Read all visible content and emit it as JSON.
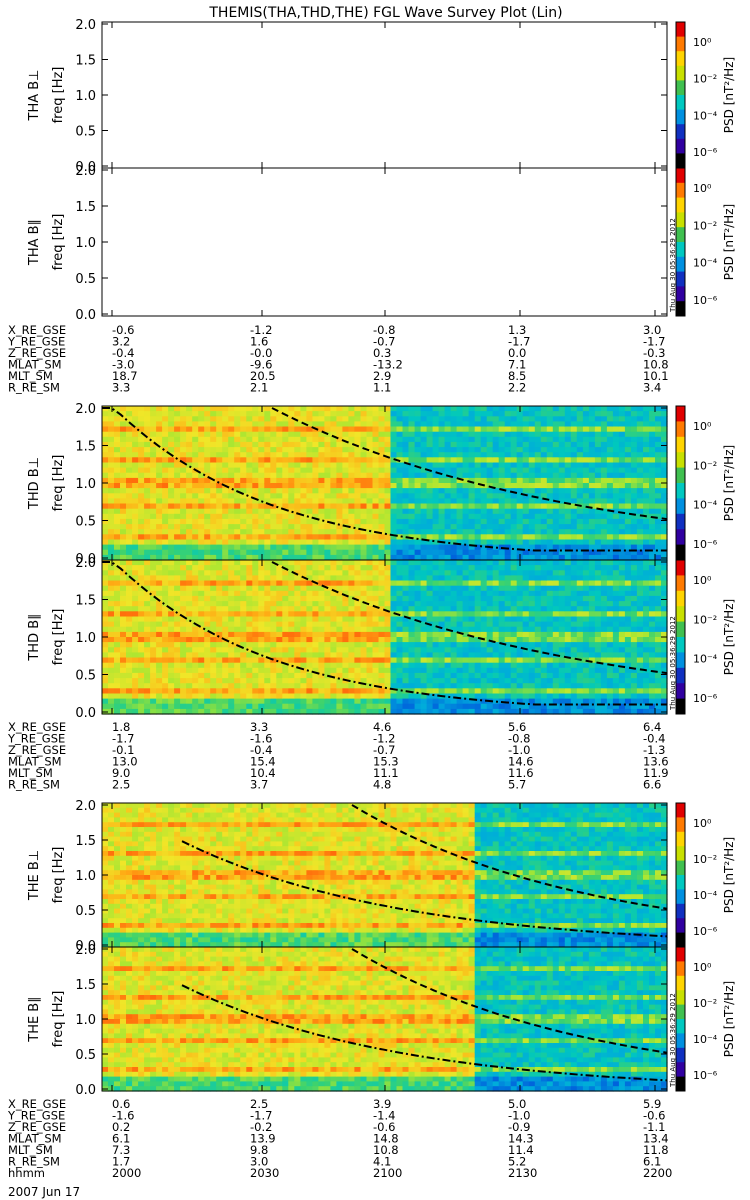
{
  "title": "THEMIS(THA,THD,THE) FGL Wave Survey Plot (Lin)",
  "stamp": "Thu Aug 30 05:36:29 2012",
  "colorbar": {
    "label": "PSD [nT²/Hz]",
    "ticks": [
      "10⁰",
      "10⁻²",
      "10⁻⁴",
      "10⁻⁶"
    ],
    "colors": [
      "#e00000",
      "#ff7a00",
      "#ffd400",
      "#c8e000",
      "#40c050",
      "#00c8c0",
      "#0090e0",
      "#1030c0",
      "#3000a0",
      "#000000"
    ]
  },
  "y_ticks": [
    "0.0",
    "0.5",
    "1.0",
    "1.5",
    "2.0"
  ],
  "x_ticks": [
    "2000",
    "2030",
    "2100",
    "2130",
    "2200"
  ],
  "date_label": "2007 Jun 17",
  "panels": [
    {
      "ylabel_top": "THA B⊥",
      "ylabel_bottom": "freq [Hz]",
      "has_data": false
    },
    {
      "ylabel_top": "THA B∥",
      "ylabel_bottom": "freq [Hz]",
      "has_data": false
    },
    {
      "ylabel_top": "THD B⊥",
      "ylabel_bottom": "freq [Hz]",
      "has_data": true
    },
    {
      "ylabel_top": "THD B∥",
      "ylabel_bottom": "freq [Hz]",
      "has_data": true
    },
    {
      "ylabel_top": "THE B⊥",
      "ylabel_bottom": "freq [Hz]",
      "has_data": true
    },
    {
      "ylabel_top": "THE B∥",
      "ylabel_bottom": "freq [Hz]",
      "has_data": true
    }
  ],
  "ephem_tables": [
    {
      "rows": [
        {
          "label": "X_RE_GSE",
          "values": [
            "-0.6",
            "-1.2",
            "-0.8",
            "1.3",
            "3.0"
          ]
        },
        {
          "label": "Y_RE_GSE",
          "values": [
            "3.2",
            "1.6",
            "-0.7",
            "-1.7",
            "-1.7"
          ]
        },
        {
          "label": "Z_RE_GSE",
          "values": [
            "-0.4",
            "-0.0",
            "0.3",
            "0.0",
            "-0.3"
          ]
        },
        {
          "label": "MLAT_SM",
          "values": [
            "-3.0",
            "-9.6",
            "-13.2",
            "7.1",
            "10.8"
          ]
        },
        {
          "label": "MLT_SM",
          "values": [
            "18.7",
            "20.5",
            "2.9",
            "8.5",
            "10.1"
          ]
        },
        {
          "label": "R_RE_SM",
          "values": [
            "3.3",
            "2.1",
            "1.1",
            "2.2",
            "3.4"
          ]
        }
      ]
    },
    {
      "rows": [
        {
          "label": "X_RE_GSE",
          "values": [
            "1.8",
            "3.3",
            "4.6",
            "5.6",
            "6.4"
          ]
        },
        {
          "label": "Y_RE_GSE",
          "values": [
            "-1.7",
            "-1.6",
            "-1.2",
            "-0.8",
            "-0.4"
          ]
        },
        {
          "label": "Z_RE_GSE",
          "values": [
            "-0.1",
            "-0.4",
            "-0.7",
            "-1.0",
            "-1.3"
          ]
        },
        {
          "label": "MLAT_SM",
          "values": [
            "13.0",
            "15.4",
            "15.3",
            "14.6",
            "13.6"
          ]
        },
        {
          "label": "MLT_SM",
          "values": [
            "9.0",
            "10.4",
            "11.1",
            "11.6",
            "11.9"
          ]
        },
        {
          "label": "R_RE_SM",
          "values": [
            "2.5",
            "3.7",
            "4.8",
            "5.7",
            "6.6"
          ]
        }
      ]
    },
    {
      "rows": [
        {
          "label": "X_RE_GSE",
          "values": [
            "0.6",
            "2.5",
            "3.9",
            "5.0",
            "5.9"
          ]
        },
        {
          "label": "Y_RE_GSE",
          "values": [
            "-1.6",
            "-1.7",
            "-1.4",
            "-1.0",
            "-0.6"
          ]
        },
        {
          "label": "Z_RE_GSE",
          "values": [
            "0.2",
            "-0.2",
            "-0.6",
            "-0.9",
            "-1.1"
          ]
        },
        {
          "label": "MLAT_SM",
          "values": [
            "6.1",
            "13.9",
            "14.8",
            "14.3",
            "13.4"
          ]
        },
        {
          "label": "MLT_SM",
          "values": [
            "7.3",
            "9.8",
            "10.8",
            "11.4",
            "11.8"
          ]
        },
        {
          "label": "R_RE_SM",
          "values": [
            "1.7",
            "3.0",
            "4.1",
            "5.2",
            "6.1"
          ]
        },
        {
          "label": "hhmm",
          "values": [
            "2000",
            "2030",
            "2100",
            "2130",
            "2200"
          ]
        }
      ]
    }
  ],
  "chart_data": {
    "type": "heatmap",
    "title": "THEMIS(THA,THD,THE) FGL Wave Survey Plot (Lin)",
    "x": "time (hhmm)",
    "x_ticks": [
      "2000",
      "2030",
      "2100",
      "2130",
      "2200"
    ],
    "ylim": [
      0,
      2.0
    ],
    "ylabel": "freq [Hz]",
    "colorbar_label": "PSD [nT²/Hz]",
    "colorbar_range": [
      "1e-6",
      "1e0"
    ],
    "panels": [
      {
        "name": "THA B⊥",
        "empty": true
      },
      {
        "name": "THA B∥",
        "empty": true
      },
      {
        "name": "THD B⊥",
        "transition_time": "2056",
        "fce_lines": true
      },
      {
        "name": "THD B∥",
        "transition_time": "2056",
        "fce_lines": true
      },
      {
        "name": "THE B⊥",
        "transition_time": "2114",
        "fce_lines": true
      },
      {
        "name": "THE B∥",
        "transition_time": "2114",
        "fce_lines": true
      }
    ]
  }
}
